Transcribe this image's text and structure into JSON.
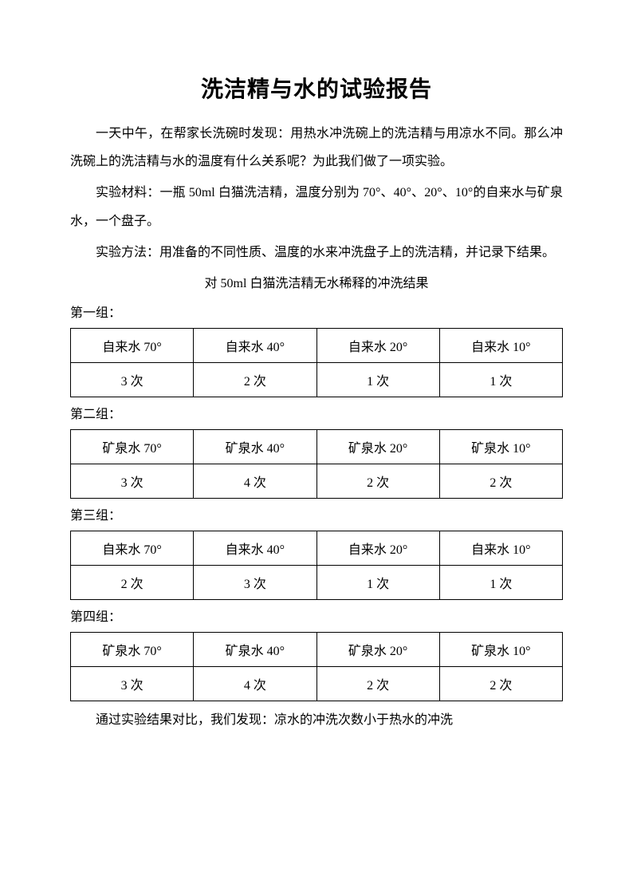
{
  "title": "洗洁精与水的试验报告",
  "paragraphs": {
    "intro": "一天中午，在帮家长洗碗时发现：用热水冲洗碗上的洗洁精与用凉水不同。那么冲洗碗上的洗洁精与水的温度有什么关系呢？为此我们做了一项实验。",
    "materials": "实验材料：一瓶 50ml 白猫洗洁精，温度分别为 70°、40°、20°、10°的自来水与矿泉水，一个盘子。",
    "methods": "实验方法：用准备的不同性质、温度的水来冲洗盘子上的洗洁精，并记录下结果。",
    "subtitle": "对 50ml 白猫洗洁精无水稀释的冲洗结果"
  },
  "groups": [
    {
      "label": "第一组：",
      "headers": [
        "自来水 70°",
        "自来水 40°",
        "自来水 20°",
        "自来水 10°"
      ],
      "values": [
        "3 次",
        "2 次",
        "1 次",
        "1 次"
      ]
    },
    {
      "label": "第二组：",
      "headers": [
        "矿泉水 70°",
        "矿泉水 40°",
        "矿泉水 20°",
        "矿泉水 10°"
      ],
      "values": [
        "3 次",
        "4 次",
        "2 次",
        "2 次"
      ]
    },
    {
      "label": "第三组：",
      "headers": [
        "自来水 70°",
        "自来水 40°",
        "自来水 20°",
        "自来水 10°"
      ],
      "values": [
        "2 次",
        "3 次",
        "1 次",
        "1 次"
      ]
    },
    {
      "label": "第四组：",
      "headers": [
        "矿泉水 70°",
        "矿泉水 40°",
        "矿泉水 20°",
        "矿泉水 10°"
      ],
      "values": [
        "3 次",
        "4 次",
        "2 次",
        "2 次"
      ]
    }
  ],
  "conclusion": "通过实验结果对比，我们发现：凉水的冲洗次数小于热水的冲洗"
}
